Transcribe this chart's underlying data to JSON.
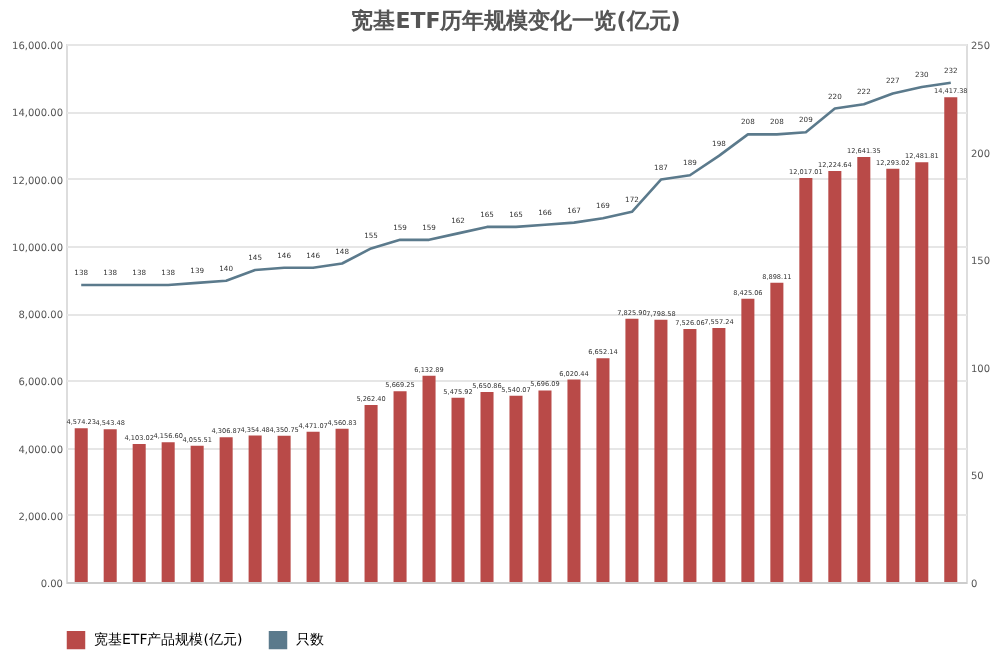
{
  "chart_data": {
    "type": "bar",
    "title": "宽基ETF历年规模变化一览(亿元)",
    "categories": [
      null,
      null,
      null,
      null,
      null,
      null,
      null,
      null,
      null,
      null,
      null,
      null,
      null,
      null,
      null,
      null,
      null,
      null,
      null,
      null,
      null,
      null,
      null,
      null,
      null,
      null,
      null,
      null,
      null,
      null,
      null
    ],
    "series": [
      {
        "name": "宽基ETF产品规模(亿元)",
        "color": "#b94a48",
        "values": [
          4574.23,
          4543.48,
          4103.02,
          4156.6,
          4055.51,
          4306.87,
          4354.48,
          4350.75,
          4471.07,
          4560.83,
          5262.4,
          5669.25,
          6132.89,
          5475.92,
          5650.86,
          5540.07,
          5696.09,
          6020.44,
          6652.14,
          7825.9,
          7798.58,
          7526.06,
          7557.24,
          8425.06,
          8898.11,
          12017.01,
          12224.64,
          12641.35,
          12293.02,
          12481.81,
          14417.38
        ],
        "value_labels": [
          "4,574.23",
          "4,543.48",
          "4,103.02",
          "4,156.60",
          "4,055.51",
          "4,306.87",
          "4,354.48",
          "4,350.75",
          "4,471.07",
          "4,560.83",
          "5,262.40",
          "5,669.25",
          "6,132.89",
          "5,475.92",
          "5,650.86",
          "5,540.07",
          "5,696.09",
          "6,020.44",
          "6,652.14",
          "7,825.90",
          "7,798.58",
          "7,526.06",
          "7,557.24",
          "8,425.06",
          "8,898.11",
          "12,017.01",
          "12,224.64",
          "12,641.35",
          "12,293.02",
          "12,481.81",
          "14,417.38"
        ]
      },
      {
        "name": "只数",
        "type": "line",
        "axis": "y2",
        "color": "#5b7a8c",
        "values": [
          138,
          138,
          138,
          138,
          139,
          140,
          145,
          146,
          146,
          148,
          155,
          159,
          159,
          162,
          165,
          165,
          166,
          167,
          169,
          172,
          187,
          189,
          198,
          208,
          208,
          209,
          220,
          222,
          227,
          230,
          232
        ],
        "value_labels": [
          "138",
          "138",
          "138",
          "138",
          "139",
          "140",
          "145",
          "146",
          "146",
          "148",
          "155",
          "159",
          "159",
          "162",
          "165",
          "165",
          "166",
          "167",
          "169",
          "172",
          "187",
          "189",
          "198",
          "208",
          "208",
          "209",
          "220",
          "222",
          "227",
          "230",
          "232"
        ]
      }
    ],
    "ylim": [
      0,
      16000
    ],
    "yticks": [
      {
        "value": 0,
        "label": "0.00"
      },
      {
        "value": 2000,
        "label": "2,000.00"
      },
      {
        "value": 4000,
        "label": "4,000.00"
      },
      {
        "value": 6000,
        "label": "6,000.00"
      },
      {
        "value": 8000,
        "label": "8,000.00"
      },
      {
        "value": 10000,
        "label": "10,000.00"
      },
      {
        "value": 12000,
        "label": "12,000.00"
      },
      {
        "value": 14000,
        "label": "14,000.00"
      },
      {
        "value": 16000,
        "label": "16,000.00"
      }
    ],
    "y2lim": [
      0,
      250
    ],
    "y2ticks": [
      0,
      50,
      100,
      150,
      200,
      250
    ],
    "grid": "y",
    "legend": "bottom",
    "marker": "none",
    "line_style": "solid"
  }
}
